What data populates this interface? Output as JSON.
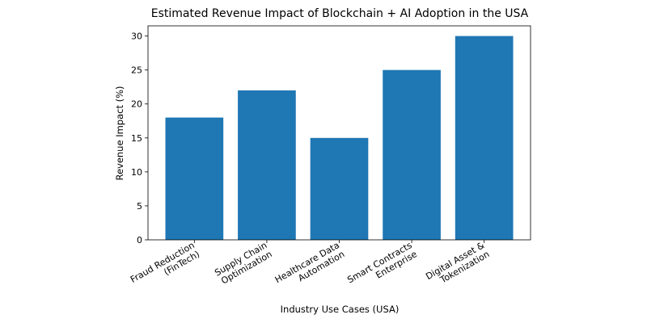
{
  "chart_data": {
    "type": "bar",
    "title": "Estimated Revenue Impact of Blockchain + AI Adoption in the USA",
    "x_label": "Industry Use Cases (USA)",
    "y_label": "Revenue Impact (%)",
    "categories": [
      "Fraud Reduction\n(FinTech)",
      "Supply Chain\nOptimization",
      "Healthcare Data\nAutomation",
      "Smart Contracts\nEnterprise",
      "Digital Asset &\nTokenization"
    ],
    "values": [
      18,
      22,
      15,
      25,
      30
    ],
    "color": "#1f77b4",
    "ylim": [
      0,
      31.5
    ],
    "yticks": [
      0,
      5,
      10,
      15,
      20,
      25,
      30
    ],
    "grid": false
  }
}
